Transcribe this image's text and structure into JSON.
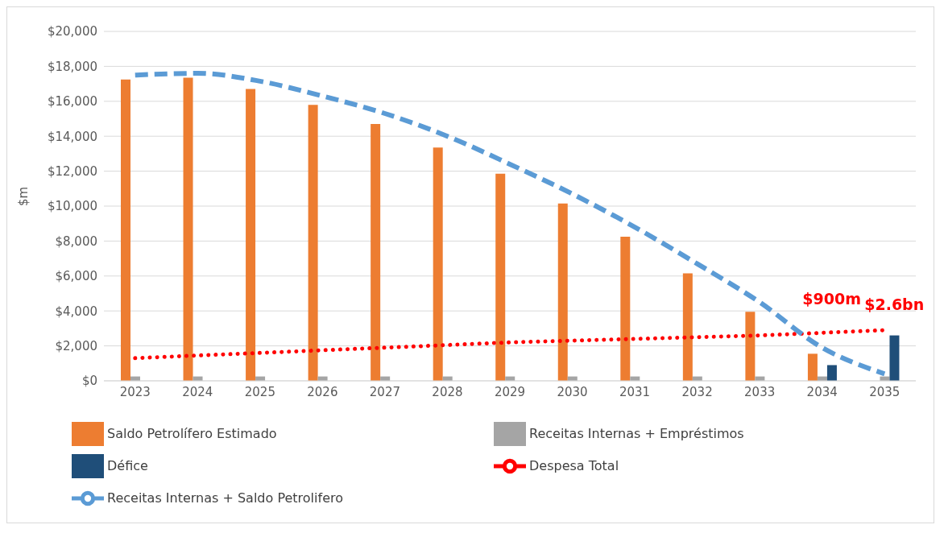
{
  "chart_data": {
    "type": "bar",
    "ylabel": "$m",
    "categories": [
      "2023",
      "2024",
      "2025",
      "2026",
      "2027",
      "2028",
      "2029",
      "2030",
      "2031",
      "2032",
      "2033",
      "2034",
      "2035"
    ],
    "series": [
      {
        "name": "Saldo Petrolífero Estimado",
        "color": "#ed7d31",
        "values": [
          17250,
          17350,
          16700,
          15800,
          14700,
          13350,
          11850,
          10150,
          8250,
          6150,
          3950,
          1550,
          null
        ]
      },
      {
        "name": "Receitas Internas + Empréstimos",
        "color": "#a5a5a5",
        "values": [
          250,
          250,
          250,
          250,
          250,
          250,
          250,
          250,
          250,
          250,
          250,
          250,
          250
        ]
      },
      {
        "name": "Défice",
        "color": "#1f4e79",
        "values": [
          null,
          null,
          null,
          null,
          null,
          null,
          null,
          null,
          null,
          null,
          null,
          900,
          2600
        ]
      },
      {
        "name": "Despesa Total",
        "type": "line",
        "color": "#ff0000",
        "line_style": "dotted",
        "values": [
          1300,
          1450,
          1600,
          1750,
          1900,
          2050,
          2200,
          2300,
          2400,
          2500,
          2600,
          2750,
          2900
        ]
      },
      {
        "name": "Receitas Internas + Saldo Petrolifero",
        "type": "line",
        "color": "#5b9bd5",
        "line_style": "dashed",
        "values": [
          17500,
          17600,
          17150,
          16300,
          15300,
          14000,
          12400,
          10700,
          8800,
          6700,
          4500,
          1900,
          400
        ]
      }
    ],
    "ylim": [
      0,
      20000
    ],
    "yticks": [
      {
        "value": 0,
        "label": "$0"
      },
      {
        "value": 2000,
        "label": "$2,000"
      },
      {
        "value": 4000,
        "label": "$4,000"
      },
      {
        "value": 6000,
        "label": "$6,000"
      },
      {
        "value": 8000,
        "label": "$8,000"
      },
      {
        "value": 10000,
        "label": "$10,000"
      },
      {
        "value": 12000,
        "label": "$12,000"
      },
      {
        "value": 14000,
        "label": "$14,000"
      },
      {
        "value": 16000,
        "label": "$16,000"
      },
      {
        "value": 18000,
        "label": "$18,000"
      },
      {
        "value": 20000,
        "label": "$20,000"
      }
    ],
    "grid": "y",
    "legend": "bottom",
    "marker": "none",
    "annotations": [
      "$900m",
      {
        "text": "$2.6bn",
        "x": "2035",
        "y": 2600
      }
    ]
  }
}
